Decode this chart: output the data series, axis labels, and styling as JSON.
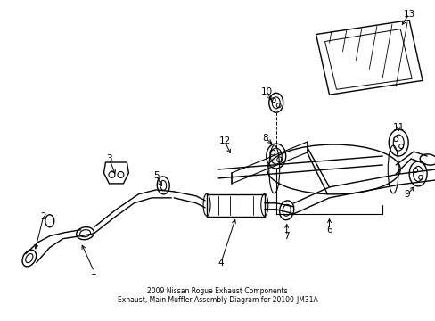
{
  "bg_color": "#ffffff",
  "line_color": "#000000",
  "fig_width": 4.89,
  "fig_height": 3.6,
  "dpi": 100,
  "title": "2009 Nissan Rogue Exhaust Components\nExhaust, Main Muffler Assembly Diagram for 20100-JM31A"
}
